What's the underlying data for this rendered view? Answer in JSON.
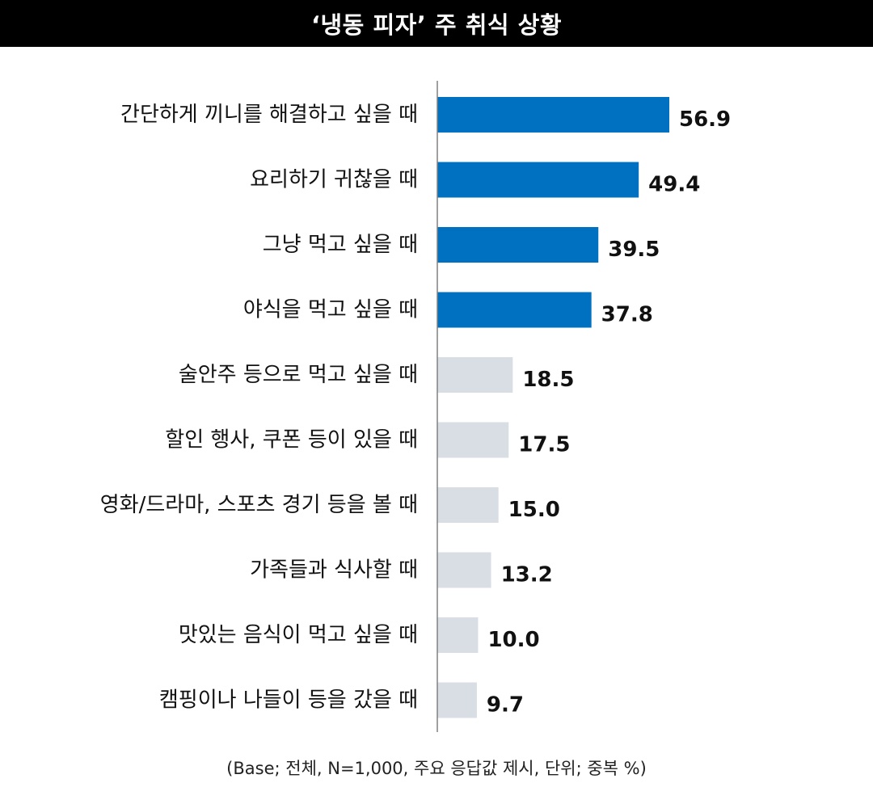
{
  "title": "‘냉동 피자’ 주 취식 상황",
  "footnote": "(Base; 전체, N=1,000, 주요 응답값 제시, 단위; 중복 %)",
  "colors": {
    "highlight": "#0070c0",
    "default": "#d9dde4",
    "axis": "#808080",
    "title_bg": "#000000"
  },
  "chart_data": {
    "type": "bar",
    "orientation": "horizontal",
    "title": "‘냉동 피자’ 주 취식 상황",
    "xlabel": "",
    "ylabel": "",
    "xlim": [
      0,
      100
    ],
    "grid": false,
    "legend": "none",
    "categories": [
      "간단하게 끼니를 해결하고 싶을 때",
      "요리하기 귀찮을 때",
      "그냥 먹고 싶을 때",
      "야식을 먹고 싶을 때",
      "술안주 등으로 먹고 싶을 때",
      "할인 행사, 쿠폰 등이 있을 때",
      "영화/드라마, 스포츠 경기 등을 볼 때",
      "가족들과 식사할 때",
      "맛있는 음식이 먹고 싶을 때",
      "캠핑이나 나들이 등을 갔을 때"
    ],
    "values": [
      56.9,
      49.4,
      39.5,
      37.8,
      18.5,
      17.5,
      15.0,
      13.2,
      10.0,
      9.7
    ],
    "value_labels": [
      "56.9",
      "49.4",
      "39.5",
      "37.8",
      "18.5",
      "17.5",
      "15.0",
      "13.2",
      "10.0",
      "9.7"
    ],
    "highlighted_top_n": 4
  }
}
